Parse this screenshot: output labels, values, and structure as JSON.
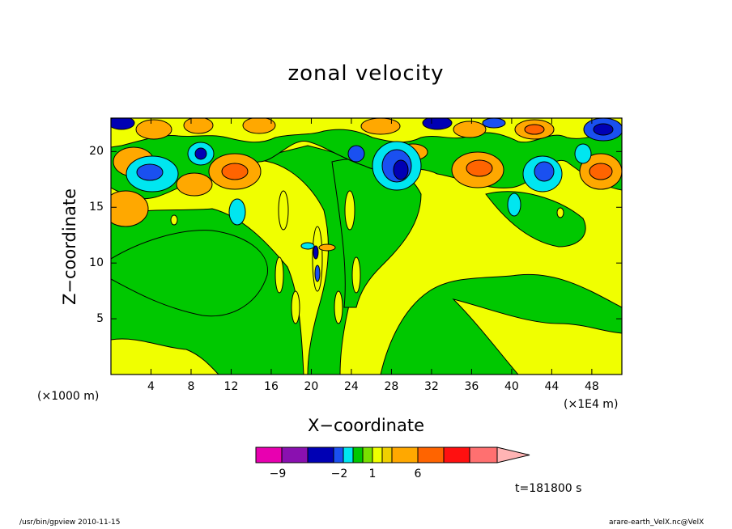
{
  "chart_data": {
    "type": "heatmap",
    "title": "zonal velocity",
    "xlabel": "X−coordinate",
    "ylabel": "Z−coordinate",
    "x_unit_left": "(×1000 m)",
    "x_unit_right": "(×1E4 m)",
    "xlim": [
      0,
      51
    ],
    "ylim": [
      0,
      23
    ],
    "xticks": [
      4,
      8,
      12,
      16,
      20,
      24,
      28,
      32,
      36,
      40,
      44,
      48
    ],
    "yticks": [
      5,
      10,
      15,
      20
    ],
    "time_label": "t=181800 s",
    "colorbar": {
      "colors": [
        "#e800b0",
        "#8a10b0",
        "#0000b4",
        "#1a50f0",
        "#00e6f0",
        "#00c800",
        "#78e000",
        "#f0ff00",
        "#f0d000",
        "#ffa800",
        "#ff6400",
        "#ff1010",
        "#ff7070",
        "#ffb4b4"
      ],
      "labels": [
        {
          "text": "−9",
          "value": -9
        },
        {
          "text": "−2",
          "value": -2
        },
        {
          "text": "1",
          "value": 1
        },
        {
          "text": "6",
          "value": 6
        }
      ]
    }
  },
  "footer": {
    "left": "/usr/bin/gpview   2010-11-15",
    "right": "arare-earth_VelX.nc@VelX"
  }
}
